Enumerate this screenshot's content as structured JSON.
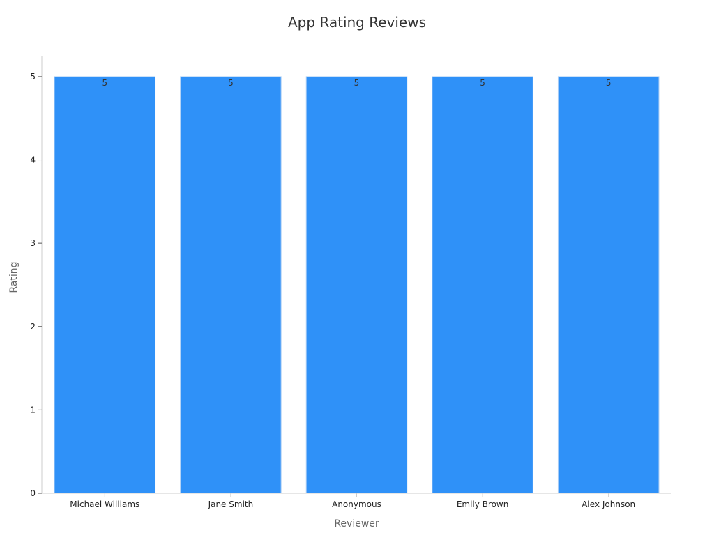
{
  "chart_data": {
    "type": "bar",
    "title": "App Rating Reviews",
    "xlabel": "Reviewer",
    "ylabel": "Rating",
    "categories": [
      "Michael Williams",
      "Jane Smith",
      "Anonymous",
      "Emily Brown",
      "Alex Johnson"
    ],
    "values": [
      5,
      5,
      5,
      5,
      5
    ],
    "data_labels": [
      "5",
      "5",
      "5",
      "5",
      "5"
    ],
    "ylim": [
      0,
      5.25
    ],
    "yticks": [
      0,
      1,
      2,
      3,
      4,
      5
    ],
    "grid": false,
    "legend": "none",
    "bar_color": "#2f91f8",
    "bar_edge_color": "#a9cdf5",
    "axis_color": "#cccccc"
  }
}
